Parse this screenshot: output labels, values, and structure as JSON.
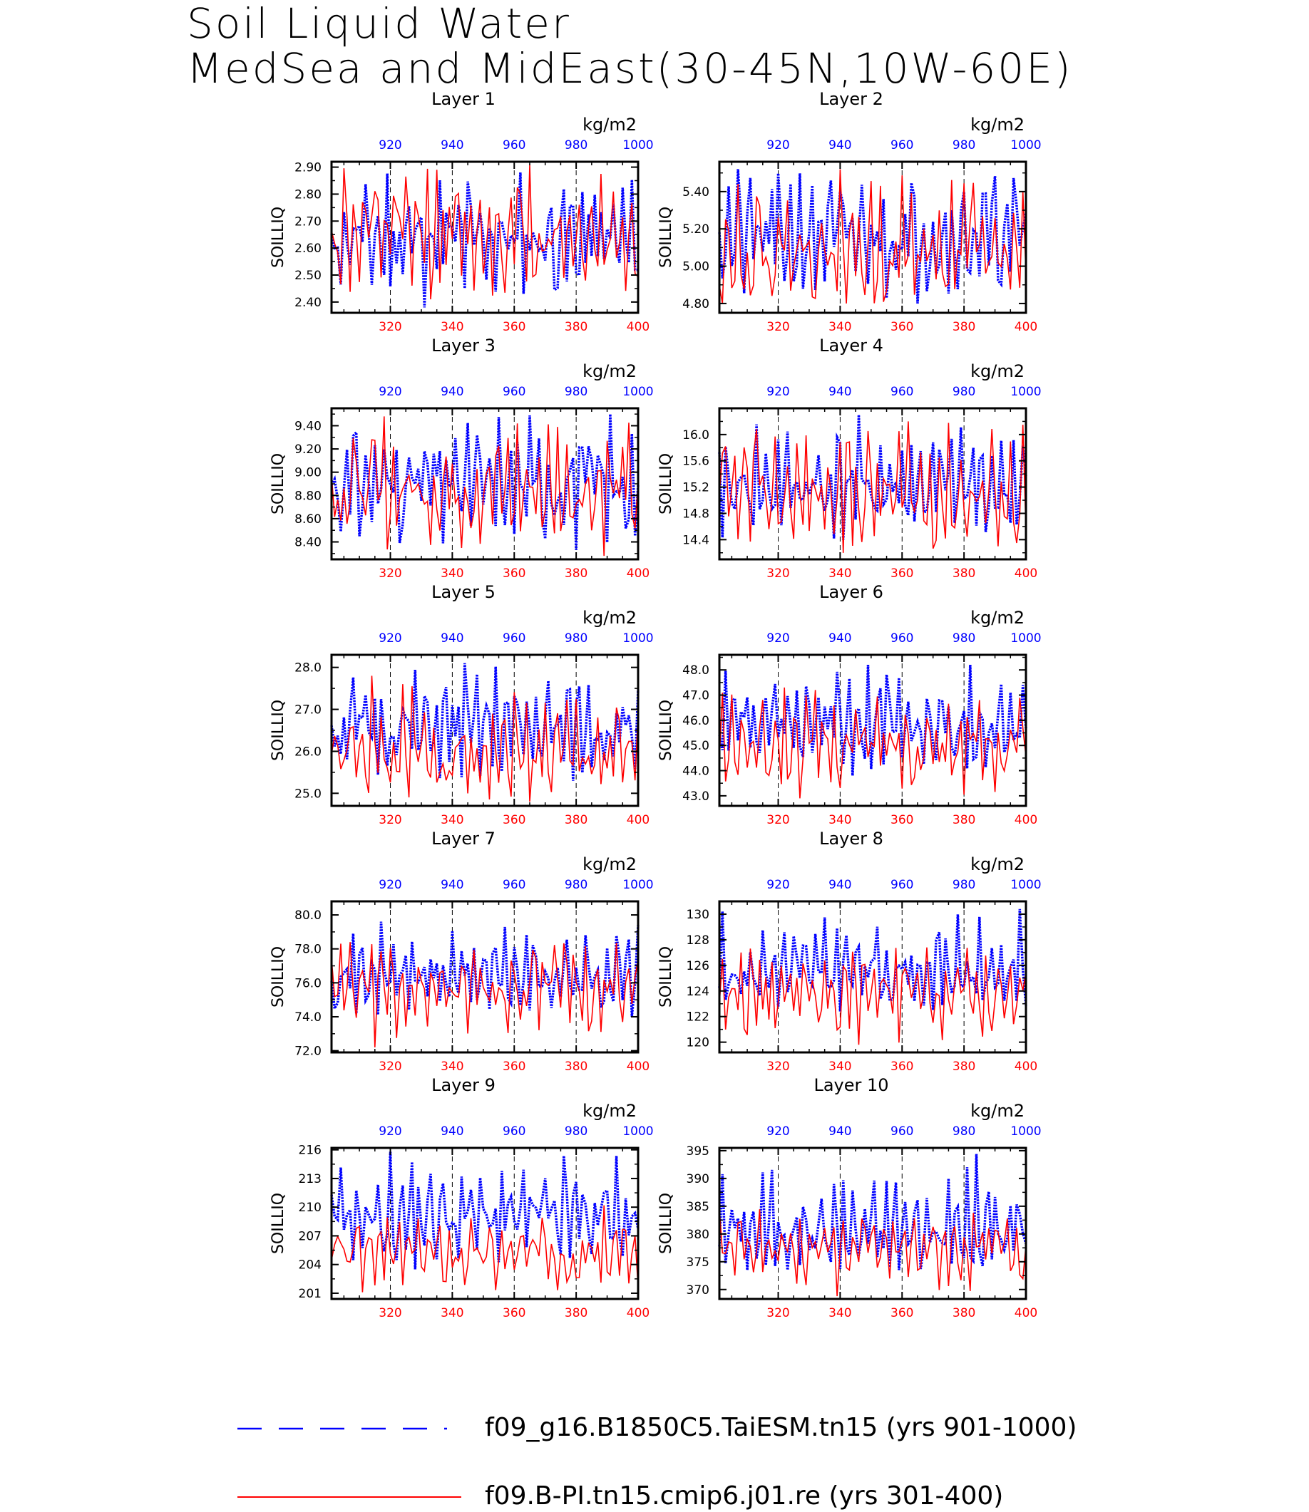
{
  "title": {
    "line1": "Soil Liquid Water",
    "line2": "MedSea and MidEast(30-45N,10W-60E)"
  },
  "colors": {
    "red_series": "#ff0000",
    "blue_series": "#0000ff",
    "axis": "#000000",
    "grid": "#000000"
  },
  "legend": {
    "placement": "bottom",
    "blue_label": "f09_g16.B1850C5.TaiESM.tn15 (yrs 901-1000)",
    "red_label": "f09.B-PI.tn15.cmip6.j01.re (yrs 301-400)"
  },
  "chart_data": [
    {
      "type": "line",
      "title": "Layer 1",
      "ylabel": "SOILLIQ",
      "units": "kg/m2",
      "ylim": [
        2.36,
        2.92
      ],
      "yticks": [
        2.4,
        2.5,
        2.6,
        2.7,
        2.8,
        2.9
      ],
      "ytick_labels": [
        "2.40",
        "2.50",
        "2.60",
        "2.70",
        "2.80",
        "2.90"
      ],
      "x_bottom": {
        "range": [
          301,
          400
        ],
        "ticks": [
          320,
          340,
          360,
          380,
          400
        ]
      },
      "x_top": {
        "range": [
          901,
          1000
        ],
        "ticks": [
          920,
          940,
          960,
          980,
          1000
        ]
      },
      "grid_x_dashed": [
        320,
        340,
        360,
        380
      ],
      "series": [
        {
          "name": "f09_g16.B1850C5.TaiESM.tn15 (yrs 901-1000)",
          "color": "blue",
          "min": 2.38,
          "max": 2.88,
          "mean": 2.62,
          "seed": 11
        },
        {
          "name": "f09.B-PI.tn15.cmip6.j01.re (yrs 301-400)",
          "color": "red",
          "min": 2.41,
          "max": 2.91,
          "mean": 2.63,
          "seed": 12
        }
      ]
    },
    {
      "type": "line",
      "title": "Layer 2",
      "ylabel": "SOILLIQ",
      "units": "kg/m2",
      "ylim": [
        4.75,
        5.56
      ],
      "yticks": [
        4.8,
        5.0,
        5.2,
        5.4
      ],
      "ytick_labels": [
        "4.80",
        "5.00",
        "5.20",
        "5.40"
      ],
      "x_bottom": {
        "range": [
          301,
          400
        ],
        "ticks": [
          320,
          340,
          360,
          380,
          400
        ]
      },
      "x_top": {
        "range": [
          901,
          1000
        ],
        "ticks": [
          920,
          940,
          960,
          980,
          1000
        ]
      },
      "grid_x_dashed": [
        320,
        340,
        360,
        380
      ],
      "series": [
        {
          "name": "f09_g16.B1850C5.TaiESM.tn15 (yrs 901-1000)",
          "color": "blue",
          "min": 4.8,
          "max": 5.52,
          "mean": 5.13,
          "seed": 21
        },
        {
          "name": "f09.B-PI.tn15.cmip6.j01.re (yrs 301-400)",
          "color": "red",
          "min": 4.8,
          "max": 5.52,
          "mean": 5.12,
          "seed": 22
        }
      ]
    },
    {
      "type": "line",
      "title": "Layer 3",
      "ylabel": "SOILLIQ",
      "units": "kg/m2",
      "ylim": [
        8.25,
        9.55
      ],
      "yticks": [
        8.4,
        8.6,
        8.8,
        9.0,
        9.2,
        9.4
      ],
      "ytick_labels": [
        "8.40",
        "8.60",
        "8.80",
        "9.00",
        "9.20",
        "9.40"
      ],
      "x_bottom": {
        "range": [
          301,
          400
        ],
        "ticks": [
          320,
          340,
          360,
          380,
          400
        ]
      },
      "x_top": {
        "range": [
          901,
          1000
        ],
        "ticks": [
          920,
          940,
          960,
          980,
          1000
        ]
      },
      "grid_x_dashed": [
        320,
        340,
        360,
        380
      ],
      "series": [
        {
          "name": "f09_g16.B1850C5.TaiESM.tn15 (yrs 901-1000)",
          "color": "blue",
          "min": 8.33,
          "max": 9.5,
          "mean": 8.9,
          "seed": 31
        },
        {
          "name": "f09.B-PI.tn15.cmip6.j01.re (yrs 301-400)",
          "color": "red",
          "min": 8.28,
          "max": 9.48,
          "mean": 8.82,
          "seed": 32
        }
      ]
    },
    {
      "type": "line",
      "title": "Layer 4",
      "ylabel": "SOILLIQ",
      "units": "kg/m2",
      "ylim": [
        14.1,
        16.4
      ],
      "yticks": [
        14.4,
        14.8,
        15.2,
        15.6,
        16.0
      ],
      "ytick_labels": [
        "14.4",
        "14.8",
        "15.2",
        "15.6",
        "16.0"
      ],
      "x_bottom": {
        "range": [
          301,
          400
        ],
        "ticks": [
          320,
          340,
          360,
          380,
          400
        ]
      },
      "x_top": {
        "range": [
          901,
          1000
        ],
        "ticks": [
          920,
          940,
          960,
          980,
          1000
        ]
      },
      "grid_x_dashed": [
        320,
        340,
        360,
        380
      ],
      "series": [
        {
          "name": "f09_g16.B1850C5.TaiESM.tn15 (yrs 901-1000)",
          "color": "blue",
          "min": 14.4,
          "max": 16.3,
          "mean": 15.25,
          "seed": 41
        },
        {
          "name": "f09.B-PI.tn15.cmip6.j01.re (yrs 301-400)",
          "color": "red",
          "min": 14.2,
          "max": 16.2,
          "mean": 15.05,
          "seed": 42
        }
      ]
    },
    {
      "type": "line",
      "title": "Layer 5",
      "ylabel": "SOILLIQ",
      "units": "kg/m2",
      "ylim": [
        24.7,
        28.3
      ],
      "yticks": [
        25.0,
        26.0,
        27.0,
        28.0
      ],
      "ytick_labels": [
        "25.0",
        "26.0",
        "27.0",
        "28.0"
      ],
      "x_bottom": {
        "range": [
          301,
          400
        ],
        "ticks": [
          320,
          340,
          360,
          380,
          400
        ]
      },
      "x_top": {
        "range": [
          901,
          1000
        ],
        "ticks": [
          920,
          940,
          960,
          980,
          1000
        ]
      },
      "grid_x_dashed": [
        320,
        340,
        360,
        380
      ],
      "series": [
        {
          "name": "f09_g16.B1850C5.TaiESM.tn15 (yrs 901-1000)",
          "color": "blue",
          "min": 25.3,
          "max": 28.1,
          "mean": 26.5,
          "seed": 51
        },
        {
          "name": "f09.B-PI.tn15.cmip6.j01.re (yrs 301-400)",
          "color": "red",
          "min": 24.8,
          "max": 27.8,
          "mean": 26.1,
          "seed": 52
        }
      ]
    },
    {
      "type": "line",
      "title": "Layer 6",
      "ylabel": "SOILLIQ",
      "units": "kg/m2",
      "ylim": [
        42.6,
        48.6
      ],
      "yticks": [
        43.0,
        44.0,
        45.0,
        46.0,
        47.0,
        48.0
      ],
      "ytick_labels": [
        "43.0",
        "44.0",
        "45.0",
        "46.0",
        "47.0",
        "48.0"
      ],
      "x_bottom": {
        "range": [
          301,
          400
        ],
        "ticks": [
          320,
          340,
          360,
          380,
          400
        ]
      },
      "x_top": {
        "range": [
          901,
          1000
        ],
        "ticks": [
          920,
          940,
          960,
          980,
          1000
        ]
      },
      "grid_x_dashed": [
        320,
        340,
        360,
        380
      ],
      "series": [
        {
          "name": "f09_g16.B1850C5.TaiESM.tn15 (yrs 901-1000)",
          "color": "blue",
          "min": 43.8,
          "max": 48.2,
          "mean": 45.7,
          "seed": 61
        },
        {
          "name": "f09.B-PI.tn15.cmip6.j01.re (yrs 301-400)",
          "color": "red",
          "min": 42.9,
          "max": 47.3,
          "mean": 45.0,
          "seed": 62
        }
      ]
    },
    {
      "type": "line",
      "title": "Layer 7",
      "ylabel": "SOILLIQ",
      "units": "kg/m2",
      "ylim": [
        71.9,
        80.8
      ],
      "yticks": [
        72.0,
        74.0,
        76.0,
        78.0,
        80.0
      ],
      "ytick_labels": [
        "72.0",
        "74.0",
        "76.0",
        "78.0",
        "80.0"
      ],
      "x_bottom": {
        "range": [
          301,
          400
        ],
        "ticks": [
          320,
          340,
          360,
          380,
          400
        ]
      },
      "x_top": {
        "range": [
          901,
          1000
        ],
        "ticks": [
          920,
          940,
          960,
          980,
          1000
        ]
      },
      "grid_x_dashed": [
        320,
        340,
        360,
        380
      ],
      "series": [
        {
          "name": "f09_g16.B1850C5.TaiESM.tn15 (yrs 901-1000)",
          "color": "blue",
          "min": 74.0,
          "max": 79.6,
          "mean": 76.6,
          "seed": 71
        },
        {
          "name": "f09.B-PI.tn15.cmip6.j01.re (yrs 301-400)",
          "color": "red",
          "min": 72.2,
          "max": 78.4,
          "mean": 75.3,
          "seed": 72
        }
      ]
    },
    {
      "type": "line",
      "title": "Layer 8",
      "ylabel": "SOILLIQ",
      "units": "kg/m2",
      "ylim": [
        119.2,
        131.0
      ],
      "yticks": [
        120,
        122,
        124,
        126,
        128,
        130
      ],
      "ytick_labels": [
        "120",
        "122",
        "124",
        "126",
        "128",
        "130"
      ],
      "x_bottom": {
        "range": [
          301,
          400
        ],
        "ticks": [
          320,
          340,
          360,
          380,
          400
        ]
      },
      "x_top": {
        "range": [
          901,
          1000
        ],
        "ticks": [
          920,
          940,
          960,
          980,
          1000
        ]
      },
      "grid_x_dashed": [
        320,
        340,
        360,
        380
      ],
      "series": [
        {
          "name": "f09_g16.B1850C5.TaiESM.tn15 (yrs 901-1000)",
          "color": "blue",
          "min": 122.4,
          "max": 130.4,
          "mean": 125.4,
          "seed": 81
        },
        {
          "name": "f09.B-PI.tn15.cmip6.j01.re (yrs 301-400)",
          "color": "red",
          "min": 119.8,
          "max": 127.4,
          "mean": 123.6,
          "seed": 82
        }
      ]
    },
    {
      "type": "line",
      "title": "Layer 9",
      "ylabel": "SOILLIQ",
      "units": "kg/m2",
      "ylim": [
        200.4,
        216.2
      ],
      "yticks": [
        201,
        204,
        207,
        210,
        213,
        216
      ],
      "ytick_labels": [
        "201",
        "204",
        "207",
        "210",
        "213",
        "216"
      ],
      "x_bottom": {
        "range": [
          301,
          400
        ],
        "ticks": [
          320,
          340,
          360,
          380,
          400
        ]
      },
      "x_top": {
        "range": [
          901,
          1000
        ],
        "ticks": [
          920,
          940,
          960,
          980,
          1000
        ]
      },
      "grid_x_dashed": [
        320,
        340,
        360,
        380
      ],
      "series": [
        {
          "name": "f09_g16.B1850C5.TaiESM.tn15 (yrs 901-1000)",
          "color": "blue",
          "min": 203.5,
          "max": 215.8,
          "mean": 208.6,
          "seed": 91
        },
        {
          "name": "f09.B-PI.tn15.cmip6.j01.re (yrs 301-400)",
          "color": "red",
          "min": 201.1,
          "max": 210.2,
          "mean": 205.6,
          "seed": 92
        }
      ]
    },
    {
      "type": "line",
      "title": "Layer 10",
      "ylabel": "SOILLIQ",
      "units": "kg/m2",
      "ylim": [
        368.3,
        395.5
      ],
      "yticks": [
        370,
        375,
        380,
        385,
        390,
        395
      ],
      "ytick_labels": [
        "370",
        "375",
        "380",
        "385",
        "390",
        "395"
      ],
      "x_bottom": {
        "range": [
          301,
          400
        ],
        "ticks": [
          320,
          340,
          360,
          380,
          400
        ]
      },
      "x_top": {
        "range": [
          901,
          1000
        ],
        "ticks": [
          920,
          940,
          960,
          980,
          1000
        ]
      },
      "grid_x_dashed": [
        320,
        340,
        360,
        380
      ],
      "series": [
        {
          "name": "f09_g16.B1850C5.TaiESM.tn15 (yrs 901-1000)",
          "color": "blue",
          "min": 373.5,
          "max": 394.4,
          "mean": 381.2,
          "seed": 101
        },
        {
          "name": "f09.B-PI.tn15.cmip6.j01.re (yrs 301-400)",
          "color": "red",
          "min": 368.8,
          "max": 384.6,
          "mean": 377.0,
          "seed": 102
        }
      ]
    }
  ]
}
